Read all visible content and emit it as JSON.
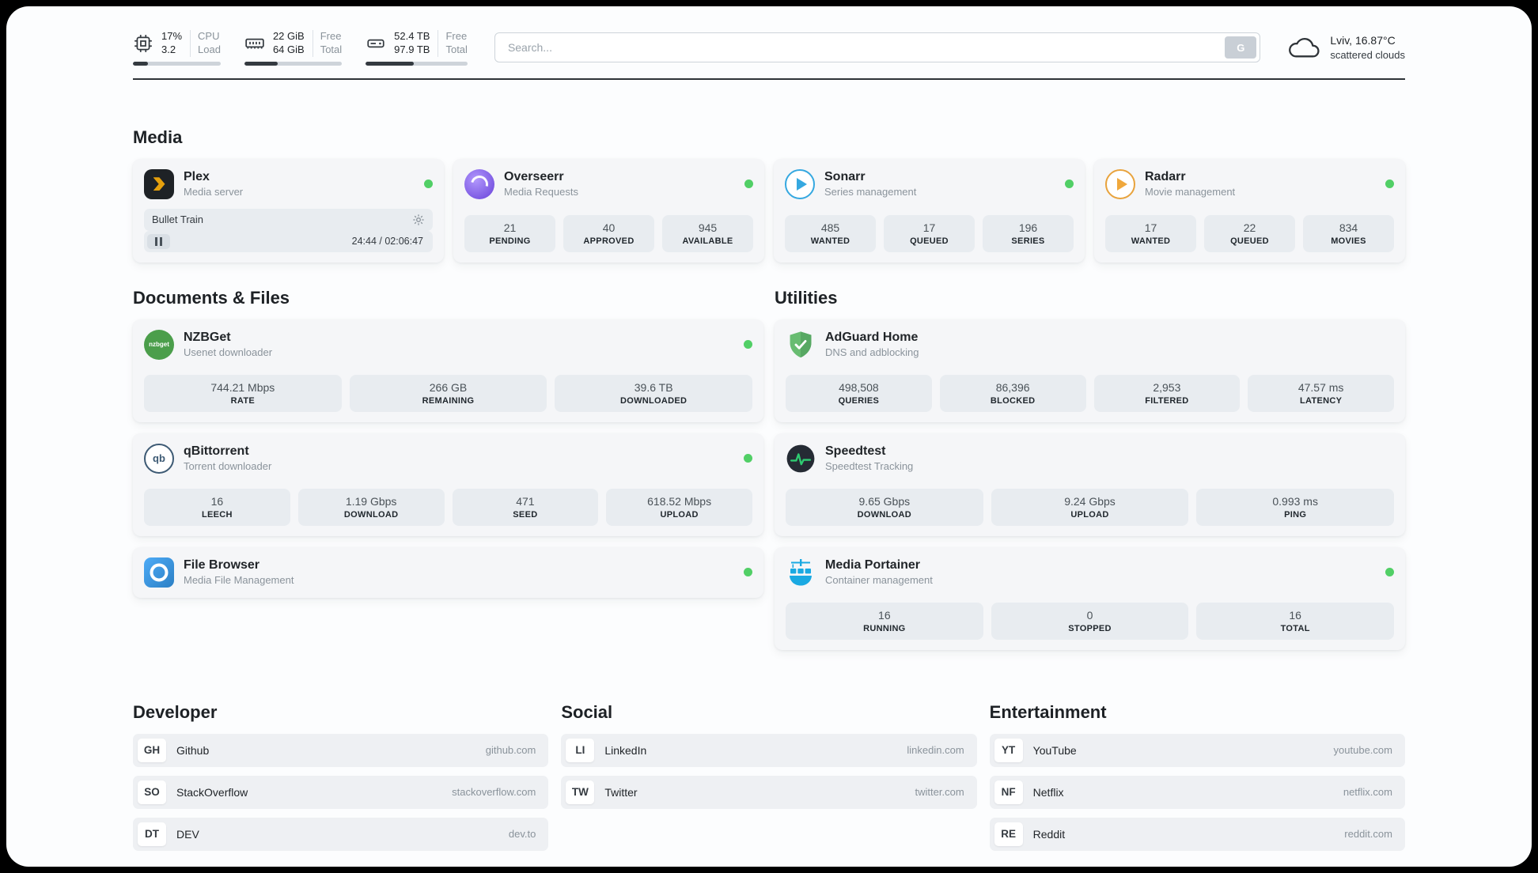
{
  "colors": {
    "status_green": "#51cf66",
    "card_bg": "#f5f6f8",
    "stat_bg": "#e8ecf0",
    "plex_yellow": "#e5a00d",
    "overseerr_purple": "#6741d9",
    "sonarr_blue": "#35a8e0",
    "radarr_orange": "#f0a83c",
    "nzbget_green": "#4b9e4b",
    "adguard_green": "#5bb85d",
    "speedtest_pulse_green": "#2ecc71",
    "portainer_blue": "#1aa9e2"
  },
  "topbar": {
    "cpu": {
      "value_top": "17%",
      "value_bottom": "3.2",
      "label_top": "CPU",
      "label_bottom": "Load",
      "progress": 17
    },
    "ram": {
      "value_top": "22 GiB",
      "value_bottom": "64 GiB",
      "label_top": "Free",
      "label_bottom": "Total",
      "progress": 34
    },
    "disk": {
      "value_top": "52.4 TB",
      "value_bottom": "97.9 TB",
      "label_top": "Free",
      "label_bottom": "Total",
      "progress": 47
    },
    "search": {
      "placeholder": "Search...",
      "button_label": "G"
    },
    "weather": {
      "location": "Lviv, 16.87°C",
      "condition": "scattered clouds"
    }
  },
  "media": {
    "heading": "Media",
    "plex": {
      "name": "Plex",
      "desc": "Media server",
      "now_playing": "Bullet Train",
      "time": "24:44 / 02:06:47"
    },
    "overseerr": {
      "name": "Overseerr",
      "desc": "Media Requests",
      "stats": [
        {
          "value": "21",
          "label": "PENDING"
        },
        {
          "value": "40",
          "label": "APPROVED"
        },
        {
          "value": "945",
          "label": "AVAILABLE"
        }
      ]
    },
    "sonarr": {
      "name": "Sonarr",
      "desc": "Series management",
      "stats": [
        {
          "value": "485",
          "label": "WANTED"
        },
        {
          "value": "17",
          "label": "QUEUED"
        },
        {
          "value": "196",
          "label": "SERIES"
        }
      ]
    },
    "radarr": {
      "name": "Radarr",
      "desc": "Movie management",
      "stats": [
        {
          "value": "17",
          "label": "WANTED"
        },
        {
          "value": "22",
          "label": "QUEUED"
        },
        {
          "value": "834",
          "label": "MOVIES"
        }
      ]
    }
  },
  "documents": {
    "heading": "Documents & Files",
    "nzbget": {
      "name": "NZBGet",
      "desc": "Usenet downloader",
      "icon_text": "nzbget",
      "stats": [
        {
          "value": "744.21 Mbps",
          "label": "RATE"
        },
        {
          "value": "266 GB",
          "label": "REMAINING"
        },
        {
          "value": "39.6 TB",
          "label": "DOWNLOADED"
        }
      ]
    },
    "qbittorrent": {
      "name": "qBittorrent",
      "desc": "Torrent downloader",
      "icon_text": "qb",
      "stats": [
        {
          "value": "16",
          "label": "LEECH"
        },
        {
          "value": "1.19 Gbps",
          "label": "DOWNLOAD"
        },
        {
          "value": "471",
          "label": "SEED"
        },
        {
          "value": "618.52 Mbps",
          "label": "UPLOAD"
        }
      ]
    },
    "filebrowser": {
      "name": "File Browser",
      "desc": "Media File Management"
    }
  },
  "utilities": {
    "heading": "Utilities",
    "adguard": {
      "name": "AdGuard Home",
      "desc": "DNS and adblocking",
      "stats": [
        {
          "value": "498,508",
          "label": "QUERIES"
        },
        {
          "value": "86,396",
          "label": "BLOCKED"
        },
        {
          "value": "2,953",
          "label": "FILTERED"
        },
        {
          "value": "47.57 ms",
          "label": "LATENCY"
        }
      ]
    },
    "speedtest": {
      "name": "Speedtest",
      "desc": "Speedtest Tracking",
      "stats": [
        {
          "value": "9.65 Gbps",
          "label": "DOWNLOAD"
        },
        {
          "value": "9.24 Gbps",
          "label": "UPLOAD"
        },
        {
          "value": "0.993 ms",
          "label": "PING"
        }
      ]
    },
    "portainer": {
      "name": "Media Portainer",
      "desc": "Container management",
      "stats": [
        {
          "value": "16",
          "label": "RUNNING"
        },
        {
          "value": "0",
          "label": "STOPPED"
        },
        {
          "value": "16",
          "label": "TOTAL"
        }
      ]
    }
  },
  "links": {
    "developer": {
      "heading": "Developer",
      "items": [
        {
          "badge": "GH",
          "name": "Github",
          "url": "github.com"
        },
        {
          "badge": "SO",
          "name": "StackOverflow",
          "url": "stackoverflow.com"
        },
        {
          "badge": "DT",
          "name": "DEV",
          "url": "dev.to"
        }
      ]
    },
    "social": {
      "heading": "Social",
      "items": [
        {
          "badge": "LI",
          "name": "LinkedIn",
          "url": "linkedin.com"
        },
        {
          "badge": "TW",
          "name": "Twitter",
          "url": "twitter.com"
        }
      ]
    },
    "entertainment": {
      "heading": "Entertainment",
      "items": [
        {
          "badge": "YT",
          "name": "YouTube",
          "url": "youtube.com"
        },
        {
          "badge": "NF",
          "name": "Netflix",
          "url": "netflix.com"
        },
        {
          "badge": "RE",
          "name": "Reddit",
          "url": "reddit.com"
        }
      ]
    }
  }
}
